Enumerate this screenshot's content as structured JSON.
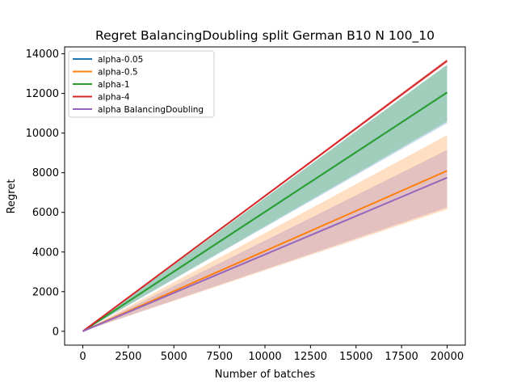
{
  "chart_data": {
    "type": "line",
    "title": "Regret BalancingDoubling split German B10 N 100_10",
    "xlabel": "Number of batches",
    "ylabel": "Regret",
    "xlim": [
      -1000,
      21000
    ],
    "ylim": [
      -700,
      14350
    ],
    "xticks": [
      0,
      2500,
      5000,
      7500,
      10000,
      12500,
      15000,
      17500,
      20000
    ],
    "yticks": [
      0,
      2000,
      4000,
      6000,
      8000,
      10000,
      12000,
      14000
    ],
    "legend_position": "upper-left",
    "grid": false,
    "x": [
      0,
      20000
    ],
    "series": [
      {
        "name": "alpha-0.05",
        "color": "#1f77b4",
        "values": [
          0,
          12050
        ],
        "band": {
          "lower": [
            0,
            10500
          ],
          "upper": [
            0,
            13450
          ]
        }
      },
      {
        "name": "alpha-0.5",
        "color": "#ff7f0e",
        "values": [
          0,
          8100
        ],
        "band": {
          "lower": [
            0,
            6150
          ],
          "upper": [
            0,
            9900
          ]
        }
      },
      {
        "name": "alpha-1",
        "color": "#2ca02c",
        "values": [
          0,
          12050
        ],
        "band": {
          "lower": [
            0,
            10600
          ],
          "upper": [
            0,
            13450
          ]
        }
      },
      {
        "name": "alpha-4",
        "color": "#d62728",
        "values": [
          0,
          13650
        ],
        "band": {
          "lower": [
            0,
            13550
          ],
          "upper": [
            0,
            13750
          ]
        }
      },
      {
        "name": "alpha BalancingDoubling",
        "color": "#9467bd",
        "values": [
          0,
          7750
        ],
        "band": {
          "lower": [
            0,
            6250
          ],
          "upper": [
            0,
            9150
          ]
        }
      }
    ]
  }
}
